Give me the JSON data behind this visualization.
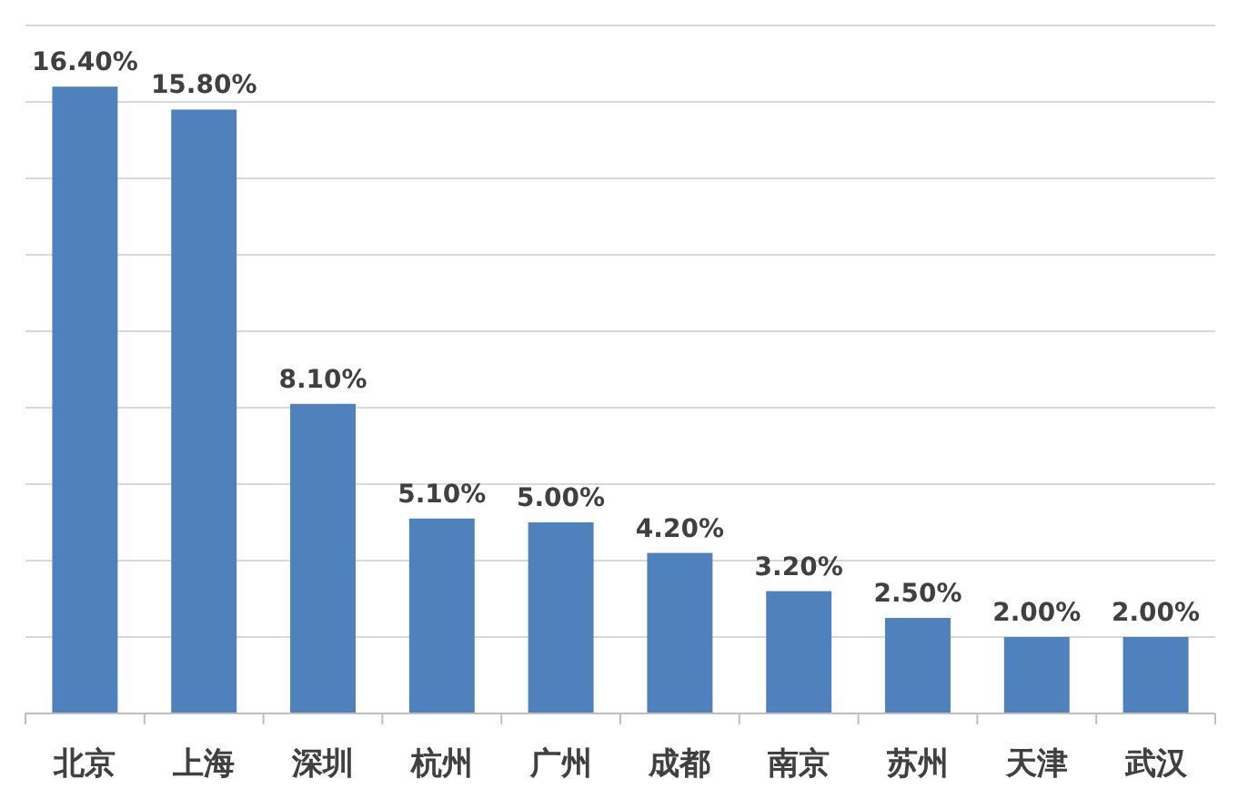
{
  "chart_data": {
    "type": "bar",
    "categories": [
      "北京",
      "上海",
      "深圳",
      "杭州",
      "广州",
      "成都",
      "南京",
      "苏州",
      "天津",
      "武汉"
    ],
    "values": [
      16.4,
      15.8,
      8.1,
      5.1,
      5.0,
      4.2,
      3.2,
      2.5,
      2.0,
      2.0
    ],
    "value_labels": [
      "16.40%",
      "15.80%",
      "8.10%",
      "5.10%",
      "5.00%",
      "4.20%",
      "3.20%",
      "2.50%",
      "2.00%",
      "2.00%"
    ],
    "color": "#4f81bd",
    "ylim": [
      0,
      18
    ],
    "yticks": [
      {
        "value": 0,
        "label": null
      },
      {
        "value": 2,
        "label": null
      },
      {
        "value": 4,
        "label": null
      },
      {
        "value": 6,
        "label": null
      },
      {
        "value": 8,
        "label": null
      },
      {
        "value": 10,
        "label": null
      },
      {
        "value": 12,
        "label": null
      },
      {
        "value": 14,
        "label": null
      },
      {
        "value": 16,
        "label": null
      },
      {
        "value": 18,
        "label": null
      }
    ],
    "grid": "y",
    "tick_labels": "x"
  }
}
